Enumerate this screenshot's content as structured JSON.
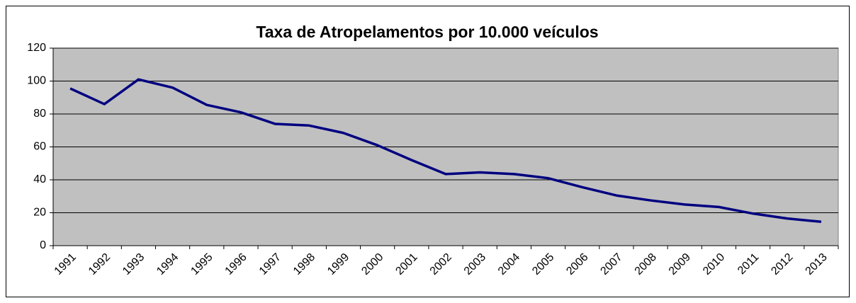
{
  "chart_data": {
    "type": "line",
    "title": "Taxa de Atropelamentos por 10.000 veículos",
    "categories": [
      "1991",
      "1992",
      "1993",
      "1994",
      "1995",
      "1996",
      "1997",
      "1998",
      "1999",
      "2000",
      "2001",
      "2002",
      "2003",
      "2004",
      "2005",
      "2006",
      "2007",
      "2008",
      "2009",
      "2010",
      "2011",
      "2012",
      "2013"
    ],
    "series": [
      {
        "name": "Taxa",
        "color": "#000080",
        "values": [
          95.5,
          86,
          101,
          96,
          85.5,
          81,
          74,
          73,
          68.5,
          61,
          52,
          43.5,
          44.5,
          43.5,
          41,
          35.5,
          30.5,
          27.5,
          25,
          23.5,
          19.5,
          16.5,
          14.5
        ]
      }
    ],
    "ylim": [
      0,
      120
    ],
    "yticks": [
      0,
      20,
      40,
      60,
      80,
      100,
      120
    ],
    "grid": true
  }
}
